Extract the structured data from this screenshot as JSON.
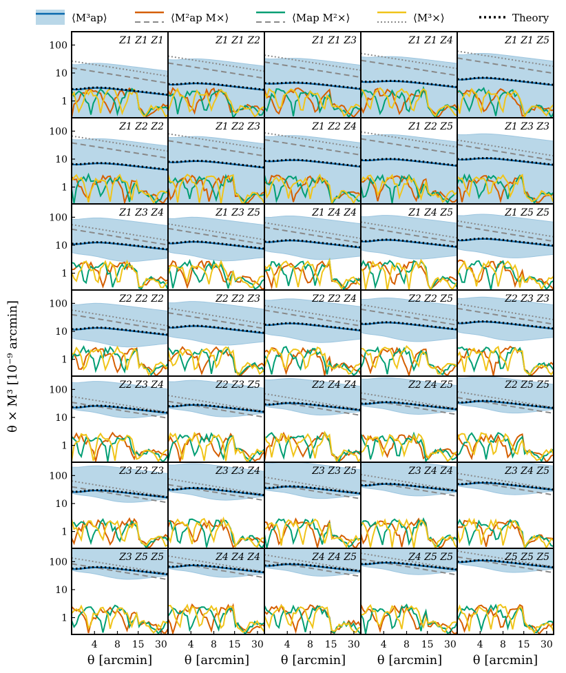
{
  "figure": {
    "ylabel": "θ × M³ [10⁻⁹ arcmin]",
    "xlabel": "θ [arcmin]"
  },
  "legend": [
    {
      "label": "⟨M³ap⟩",
      "color": "#0868ac",
      "style": "solid",
      "band": true
    },
    {
      "label": "⟨M²ap M×⟩",
      "color": "#d55e00",
      "style": "solid",
      "theory": "dashed"
    },
    {
      "label": "⟨Map M²×⟩",
      "color": "#009e73",
      "style": "solid",
      "theory": "dashed"
    },
    {
      "label": "⟨M³×⟩",
      "color": "#f0c419",
      "style": "solid",
      "theory": "dotted"
    },
    {
      "label": "Theory",
      "color": "#000000",
      "style": "dotted-thick"
    }
  ],
  "colors": {
    "band": "#b9d7e8",
    "map": "#0868ac",
    "mx": "#d55e00",
    "mapx2": "#009e73",
    "x3": "#f0c419",
    "theory": "#000000",
    "grey": "#888888"
  },
  "chart_data": {
    "type": "line",
    "yscale": "log",
    "xscale": "log",
    "xlim": [
      2,
      37
    ],
    "ylim": [
      0.25,
      300
    ],
    "xticks": [
      4,
      8,
      15,
      30
    ],
    "xticklabels": [
      "4",
      "8",
      "15",
      "30"
    ],
    "yticks": [
      1,
      10,
      100
    ],
    "yticklabels": [
      "1",
      "10",
      "100"
    ],
    "panels": [
      {
        "label": "Z1 Z1 Z1",
        "amp": 4,
        "peak": 0.3
      },
      {
        "label": "Z1 Z1 Z2",
        "amp": 6,
        "peak": 0.35
      },
      {
        "label": "Z1 Z1 Z3",
        "amp": 6.5,
        "peak": 0.4
      },
      {
        "label": "Z1 Z1 Z4",
        "amp": 7.5,
        "peak": 0.4
      },
      {
        "label": "Z1 Z1 Z5",
        "amp": 9,
        "peak": 0.3
      },
      {
        "label": "Z1 Z2 Z2",
        "amp": 10,
        "peak": 0.35
      },
      {
        "label": "Z1 Z2 Z3",
        "amp": 12,
        "peak": 0.35
      },
      {
        "label": "Z1 Z2 Z4",
        "amp": 13,
        "peak": 0.35
      },
      {
        "label": "Z1 Z2 Z5",
        "amp": 14,
        "peak": 0.35
      },
      {
        "label": "Z1 Z3 Z3",
        "amp": 15,
        "peak": 0.35
      },
      {
        "label": "Z1 Z3 Z4",
        "amp": 17,
        "peak": 0.3
      },
      {
        "label": "Z1 Z3 Z5",
        "amp": 18,
        "peak": 0.3
      },
      {
        "label": "Z1 Z4 Z4",
        "amp": 20,
        "peak": 0.3
      },
      {
        "label": "Z1 Z4 Z5",
        "amp": 21,
        "peak": 0.3
      },
      {
        "label": "Z1 Z5 Z5",
        "amp": 23,
        "peak": 0.3
      },
      {
        "label": "Z2 Z2 Z2",
        "amp": 18,
        "peak": 0.3
      },
      {
        "label": "Z2 Z2 Z3",
        "amp": 21,
        "peak": 0.3
      },
      {
        "label": "Z2 Z2 Z4",
        "amp": 26,
        "peak": 0.3
      },
      {
        "label": "Z2 Z2 Z5",
        "amp": 28,
        "peak": 0.3
      },
      {
        "label": "Z2 Z3 Z3",
        "amp": 30,
        "peak": 0.3
      },
      {
        "label": "Z2 Z3 Z4",
        "amp": 35,
        "peak": 0.3
      },
      {
        "label": "Z2 Z3 Z5",
        "amp": 38,
        "peak": 0.3
      },
      {
        "label": "Z2 Z4 Z4",
        "amp": 44,
        "peak": 0.3
      },
      {
        "label": "Z2 Z4 Z5",
        "amp": 47,
        "peak": 0.3
      },
      {
        "label": "Z2 Z5 Z5",
        "amp": 52,
        "peak": 0.3
      },
      {
        "label": "Z3 Z3 Z3",
        "amp": 40,
        "peak": 0.3
      },
      {
        "label": "Z3 Z3 Z4",
        "amp": 48,
        "peak": 0.3
      },
      {
        "label": "Z3 Z3 Z5",
        "amp": 55,
        "peak": 0.3
      },
      {
        "label": "Z3 Z4 Z4",
        "amp": 68,
        "peak": 0.3
      },
      {
        "label": "Z3 Z4 Z5",
        "amp": 75,
        "peak": 0.3
      },
      {
        "label": "Z3 Z5 Z5",
        "amp": 85,
        "peak": 0.3
      },
      {
        "label": "Z4 Z4 Z4",
        "amp": 100,
        "peak": 0.3
      },
      {
        "label": "Z4 Z4 Z5",
        "amp": 110,
        "peak": 0.3
      },
      {
        "label": "Z4 Z5 Z5",
        "amp": 125,
        "peak": 0.3
      },
      {
        "label": "Z5 Z5 Z5",
        "amp": 150,
        "peak": 0.3
      }
    ]
  }
}
